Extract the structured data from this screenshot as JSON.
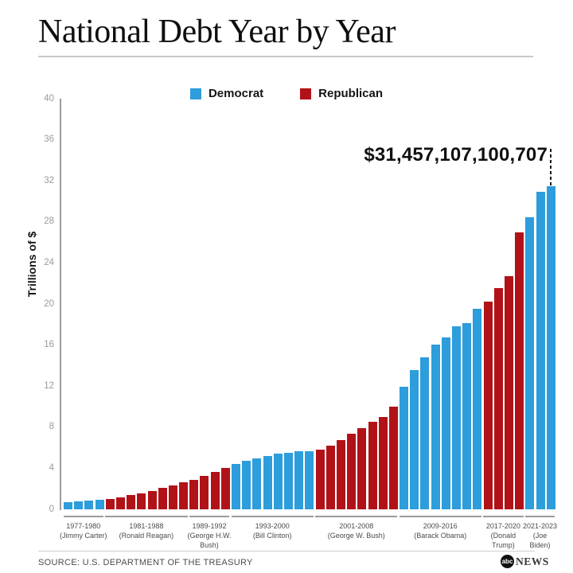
{
  "page": {
    "title": "National Debt Year by Year",
    "footer": {
      "source": "SOURCE: U.S. DEPARTMENT OF THE TREASURY",
      "logo_abc": "abc",
      "logo_news": "NEWS"
    }
  },
  "chart_data": {
    "type": "bar",
    "title": "National Debt Year by Year",
    "ylabel": "Trillions of $",
    "ylim": [
      0,
      40
    ],
    "yticks": [
      0,
      4,
      8,
      12,
      16,
      20,
      24,
      28,
      32,
      36,
      40
    ],
    "grid": false,
    "legend_position": "top-center",
    "legend": [
      {
        "label": "Democrat",
        "color": "#2D9DDB"
      },
      {
        "label": "Republican",
        "color": "#B11218"
      }
    ],
    "annotation": {
      "text": "$31,457,107,100,707",
      "target_year": 2023
    },
    "groups": [
      {
        "president": "Jimmy Carter",
        "party": "Democrat",
        "label_lines": [
          "1977-1980",
          "(Jimmy Carter)"
        ],
        "years": [
          1977,
          1978,
          1979,
          1980
        ],
        "values": [
          0.7,
          0.77,
          0.83,
          0.91
        ]
      },
      {
        "president": "Ronald Reagan",
        "party": "Republican",
        "label_lines": [
          "1981-1988",
          "(Ronald Reagan)"
        ],
        "years": [
          1981,
          1982,
          1983,
          1984,
          1985,
          1986,
          1987,
          1988
        ],
        "values": [
          1.0,
          1.14,
          1.38,
          1.57,
          1.82,
          2.13,
          2.35,
          2.6
        ]
      },
      {
        "president": "George H.W. Bush",
        "party": "Republican",
        "label_lines": [
          "1989-1992",
          "(George H.W.",
          "Bush)"
        ],
        "years": [
          1989,
          1990,
          1991,
          1992
        ],
        "values": [
          2.86,
          3.23,
          3.67,
          4.06
        ]
      },
      {
        "president": "Bill Clinton",
        "party": "Democrat",
        "label_lines": [
          "1993-2000",
          "(Bill Clinton)"
        ],
        "years": [
          1993,
          1994,
          1995,
          1996,
          1997,
          1998,
          1999,
          2000
        ],
        "values": [
          4.41,
          4.69,
          4.97,
          5.22,
          5.41,
          5.53,
          5.66,
          5.67
        ]
      },
      {
        "president": "George W. Bush",
        "party": "Republican",
        "label_lines": [
          "2001-2008",
          "(George W. Bush)"
        ],
        "years": [
          2001,
          2002,
          2003,
          2004,
          2005,
          2006,
          2007,
          2008
        ],
        "values": [
          5.81,
          6.23,
          6.78,
          7.38,
          7.93,
          8.51,
          9.01,
          10.02
        ]
      },
      {
        "president": "Barack Obama",
        "party": "Democrat",
        "label_lines": [
          "2009-2016",
          "(Barack Obama)"
        ],
        "years": [
          2009,
          2010,
          2011,
          2012,
          2013,
          2014,
          2015,
          2016
        ],
        "values": [
          11.91,
          13.56,
          14.79,
          16.07,
          16.74,
          17.82,
          18.15,
          19.57
        ]
      },
      {
        "president": "Donald Trump",
        "party": "Republican",
        "label_lines": [
          "2017-2020",
          "(Donald",
          "Trump)"
        ],
        "years": [
          2017,
          2018,
          2019,
          2020
        ],
        "values": [
          20.24,
          21.52,
          22.72,
          26.95
        ]
      },
      {
        "president": "Joe Biden",
        "party": "Democrat",
        "label_lines": [
          "2021-2023",
          "(Joe",
          "Biden)"
        ],
        "years": [
          2021,
          2022,
          2023
        ],
        "values": [
          28.43,
          30.93,
          31.46
        ]
      }
    ]
  }
}
